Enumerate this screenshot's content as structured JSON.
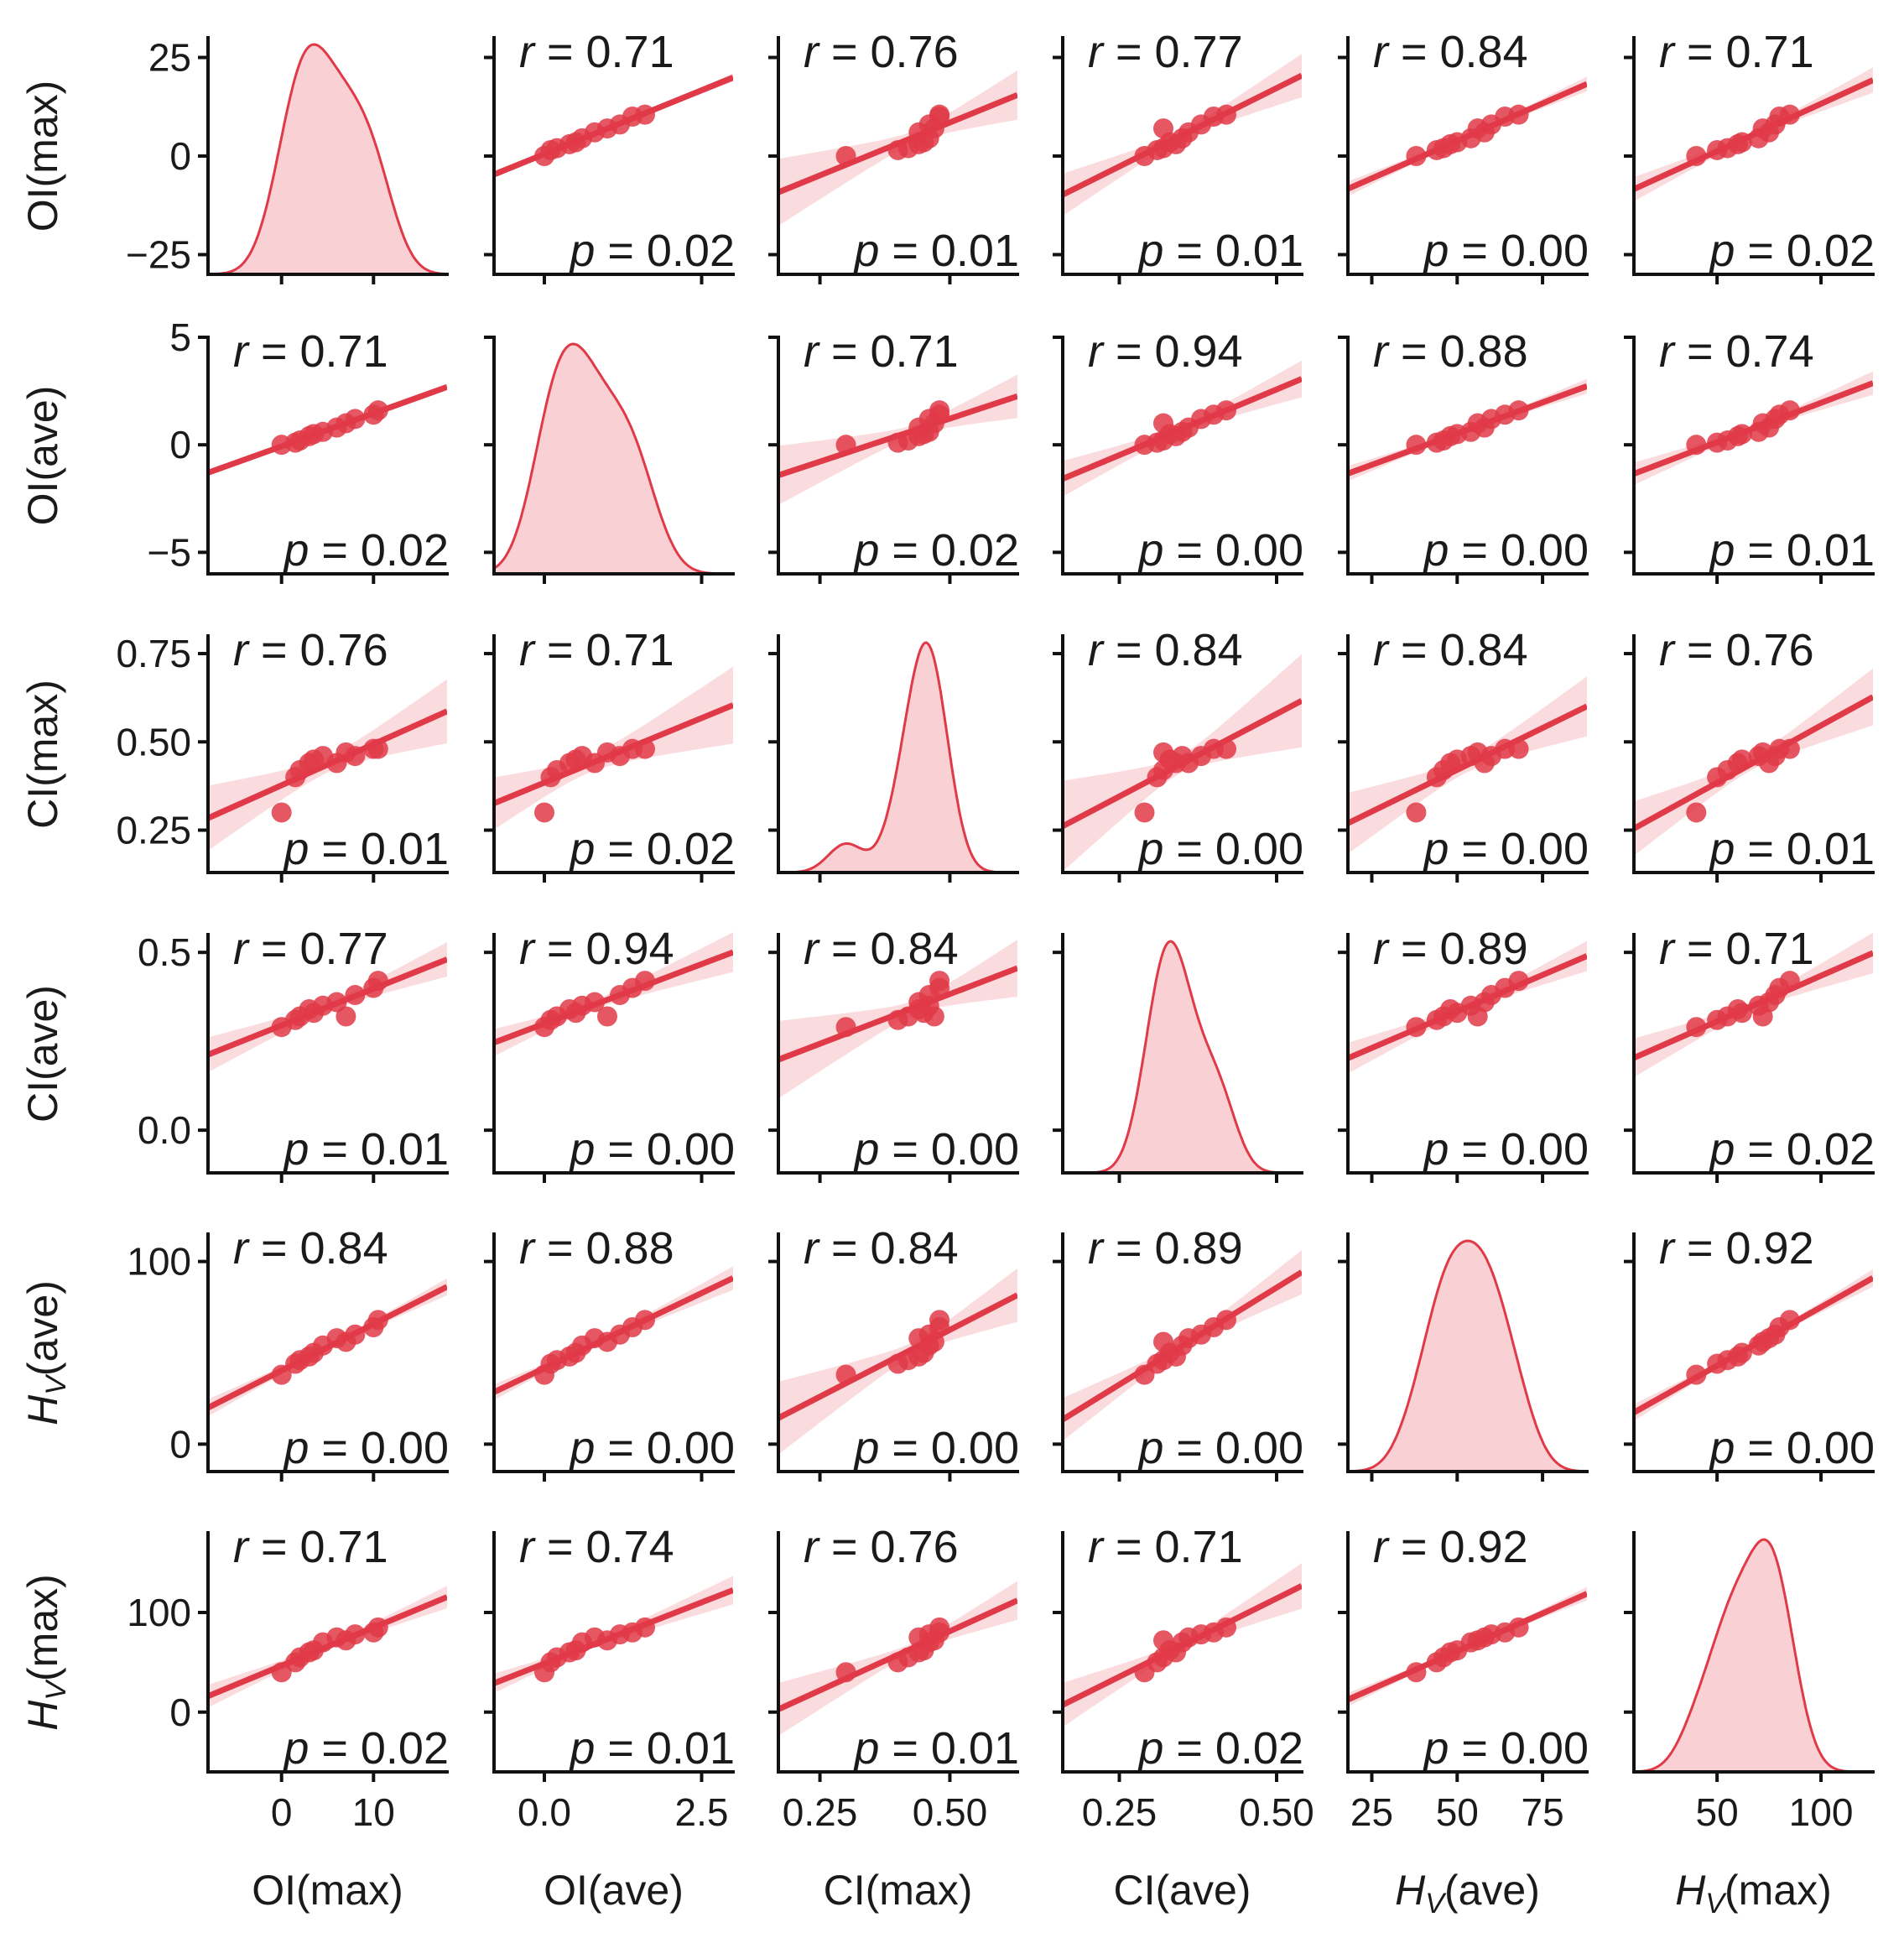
{
  "chart_data": {
    "type": "pairplot",
    "variables": [
      {
        "key": "OImax",
        "label": "OI(max)",
        "ylim": [
          -30,
          30
        ],
        "xlim": [
          -8,
          18
        ],
        "yticks": [
          25,
          0,
          -25
        ],
        "yticklabels": [
          "25",
          "0",
          "−25"
        ],
        "xticks": [
          0,
          10
        ],
        "xticklabels": [
          "0",
          "10"
        ]
      },
      {
        "key": "OIave",
        "label": "OI(ave)",
        "ylim": [
          -6,
          5
        ],
        "xlim": [
          -0.8,
          3.0
        ],
        "yticks": [
          5,
          0,
          -5
        ],
        "yticklabels": [
          "5",
          "0",
          "−5"
        ],
        "xticks": [
          0.0,
          2.5
        ],
        "xticklabels": [
          "0.0",
          "2.5"
        ]
      },
      {
        "key": "CImax",
        "label": "CI(max)",
        "ylim": [
          0.13,
          0.8
        ],
        "xlim": [
          0.17,
          0.63
        ],
        "yticks": [
          0.75,
          0.5,
          0.25
        ],
        "yticklabels": [
          "0.75",
          "0.50",
          "0.25"
        ],
        "xticks": [
          0.25,
          0.5
        ],
        "xticklabels": [
          "0.25",
          "0.50"
        ]
      },
      {
        "key": "CIave",
        "label": "CI(ave)",
        "ylim": [
          -0.12,
          0.55
        ],
        "xlim": [
          0.16,
          0.54
        ],
        "yticks": [
          0.5,
          0.0
        ],
        "yticklabels": [
          "0.5",
          "0.0"
        ],
        "xticks": [
          0.25,
          0.5
        ],
        "xticklabels": [
          "0.25",
          "0.50"
        ]
      },
      {
        "key": "HVave",
        "label": "HV(ave)",
        "label_main": "H",
        "label_sub": "V",
        "label_suffix": "(ave)",
        "ylim": [
          -15,
          115
        ],
        "xlim": [
          18,
          88
        ],
        "yticks": [
          100,
          0
        ],
        "yticklabels": [
          "100",
          "0"
        ],
        "xticks": [
          25,
          50,
          75
        ],
        "xticklabels": [
          "25",
          "50",
          "75"
        ]
      },
      {
        "key": "HVmax",
        "label": "HV(max)",
        "label_main": "H",
        "label_sub": "V",
        "label_suffix": "(max)",
        "ylim": [
          -60,
          180
        ],
        "xlim": [
          10,
          125
        ],
        "yticks": [
          100,
          0
        ],
        "yticklabels": [
          "100",
          "0"
        ],
        "xticks": [
          50,
          100
        ],
        "xticklabels": [
          "50",
          "100"
        ]
      }
    ],
    "observations": {
      "OImax": [
        0.0,
        1.5,
        2.0,
        3.0,
        3.5,
        4.5,
        6.0,
        7.0,
        8.0,
        10.0,
        10.5
      ],
      "OIave": [
        0.0,
        0.1,
        0.2,
        0.4,
        0.5,
        0.6,
        0.8,
        1.0,
        1.2,
        1.4,
        1.6
      ],
      "CImax": [
        0.3,
        0.4,
        0.42,
        0.44,
        0.45,
        0.46,
        0.44,
        0.47,
        0.46,
        0.48,
        0.48
      ],
      "CIave": [
        0.29,
        0.31,
        0.32,
        0.34,
        0.33,
        0.35,
        0.36,
        0.32,
        0.38,
        0.4,
        0.42
      ],
      "HVave": [
        38,
        44,
        46,
        48,
        50,
        54,
        58,
        56,
        60,
        64,
        68
      ],
      "HVmax": [
        40,
        50,
        55,
        60,
        62,
        70,
        75,
        72,
        78,
        80,
        85
      ]
    },
    "correlations": [
      [
        null,
        "0.71",
        "0.76",
        "0.77",
        "0.84",
        "0.71"
      ],
      [
        "0.71",
        null,
        "0.71",
        "0.94",
        "0.88",
        "0.74"
      ],
      [
        "0.76",
        "0.71",
        null,
        "0.84",
        "0.84",
        "0.76"
      ],
      [
        "0.77",
        "0.94",
        "0.84",
        null,
        "0.89",
        "0.71"
      ],
      [
        "0.84",
        "0.88",
        "0.84",
        "0.89",
        null,
        "0.92"
      ],
      [
        "0.71",
        "0.74",
        "0.76",
        "0.71",
        "0.92",
        null
      ]
    ],
    "p_values": [
      [
        null,
        "0.02",
        "0.01",
        "0.01",
        "0.00",
        "0.02"
      ],
      [
        "0.02",
        null,
        "0.02",
        "0.00",
        "0.00",
        "0.01"
      ],
      [
        "0.01",
        "0.02",
        null,
        "0.00",
        "0.00",
        "0.01"
      ],
      [
        "0.01",
        "0.00",
        "0.00",
        null,
        "0.00",
        "0.02"
      ],
      [
        "0.00",
        "0.00",
        "0.00",
        "0.00",
        null,
        "0.00"
      ],
      [
        "0.02",
        "0.01",
        "0.01",
        "0.02",
        "0.00",
        null
      ]
    ],
    "r_prefix": "r",
    "p_prefix": "p",
    "diagonal": "kde",
    "off_diagonal": "scatter with regression line and confidence band",
    "colors": {
      "point": "#e03a48",
      "line": "#e03a48",
      "band": "#f8c9cd",
      "kde_fill": "#f9d0d4",
      "kde_line": "#e03a48",
      "axis": "#111111"
    }
  }
}
